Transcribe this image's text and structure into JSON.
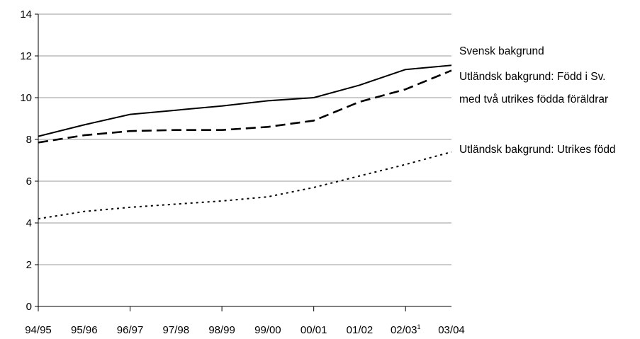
{
  "chart_data": {
    "type": "line",
    "categories": [
      "94/95",
      "95/96",
      "96/97",
      "97/98",
      "98/99",
      "99/00",
      "00/01",
      "01/02",
      "02/03",
      "03/04"
    ],
    "category_footnotes": [
      "",
      "",
      "",
      "",
      "",
      "",
      "",
      "",
      "1",
      ""
    ],
    "ylim": [
      0,
      14
    ],
    "yticks": [
      "0",
      "2",
      "4",
      "6",
      "8",
      "10",
      "12",
      "14"
    ],
    "grid": true,
    "series": [
      {
        "name": "Svensk bakgrund",
        "style": "solid",
        "values": [
          8.15,
          8.7,
          9.2,
          9.4,
          9.6,
          9.85,
          10.0,
          10.6,
          11.35,
          11.55
        ]
      },
      {
        "name": "Utländsk bakgrund: Född i Sv. med två utrikes födda föräldrar",
        "style": "dashed",
        "values": [
          7.85,
          8.2,
          8.4,
          8.45,
          8.45,
          8.6,
          8.9,
          9.8,
          10.4,
          11.3
        ]
      },
      {
        "name": "Utländsk bakgrund: Utrikes född",
        "style": "dotted",
        "values": [
          4.2,
          4.55,
          4.75,
          4.9,
          5.05,
          5.25,
          5.7,
          6.25,
          6.8,
          7.4
        ]
      }
    ],
    "legend": {
      "placement": "right",
      "labels": [
        "Svensk bakgrund",
        "Utländsk bakgrund: Född i Sv.",
        "med två utrikes födda föräldrar",
        "Utländsk bakgrund: Utrikes född"
      ]
    },
    "colors": {
      "line": "#000000",
      "grid": "#999999"
    }
  }
}
